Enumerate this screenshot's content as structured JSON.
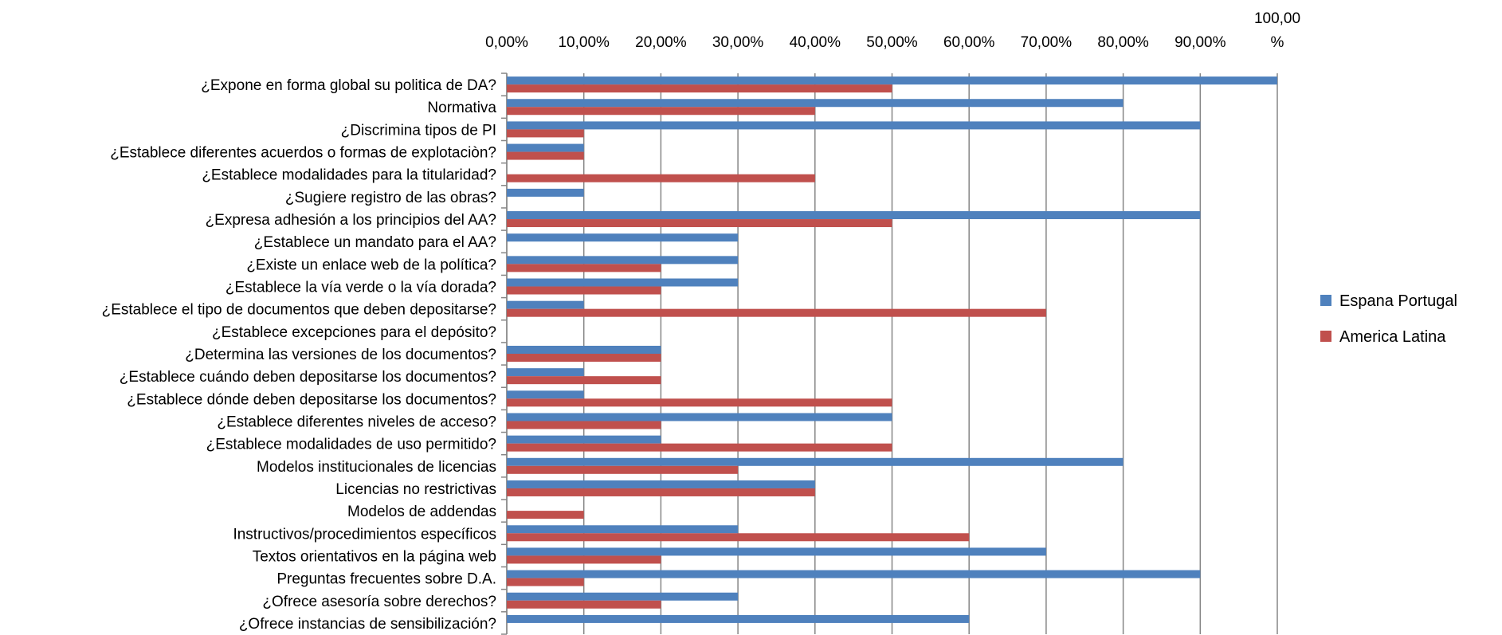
{
  "chart_data": {
    "type": "bar",
    "orientation": "horizontal",
    "title": "",
    "xlabel": "",
    "ylabel": "",
    "xlim": [
      0,
      100
    ],
    "x_ticks": [
      "0,00%",
      "10,00%",
      "20,00%",
      "30,00%",
      "40,00%",
      "50,00%",
      "60,00%",
      "70,00%",
      "80,00%",
      "90,00%",
      "100,00\n%"
    ],
    "grid": "vertical",
    "legend_position": "right",
    "categories": [
      "¿Expone en forma global su politica de DA?",
      "Normativa",
      "¿Discrimina tipos de PI",
      "¿Establece diferentes acuerdos o formas de explotaciòn?",
      "¿Establece modalidades para la titularidad?",
      "¿Sugiere registro de las obras?",
      "¿Expresa adhesión a los principios del AA?",
      "¿Establece un mandato para el AA?",
      "¿Existe un enlace web de la política?",
      "¿Establece la vía verde o la vía dorada?",
      "¿Establece el tipo de documentos que deben depositarse?",
      "¿Establece excepciones para el depósito?",
      "¿Determina las versiones de los documentos?",
      "¿Establece cuándo deben depositarse los documentos?",
      "¿Establece dónde deben depositarse los documentos?",
      "¿Establece diferentes niveles de acceso?",
      "¿Establece modalidades de uso permitido?",
      "Modelos institucionales de licencias",
      "Licencias no restrictivas",
      "Modelos de addendas",
      "Instructivos/procedimientos específicos",
      "Textos orientativos en la página web",
      "Preguntas frecuentes sobre D.A.",
      "¿Ofrece asesoría sobre derechos?",
      "¿Ofrece instancias de sensibilización?"
    ],
    "series": [
      {
        "name": "Espana Portugal",
        "color": "#4F81BD",
        "values": [
          100,
          80,
          90,
          10,
          0,
          10,
          90,
          30,
          30,
          30,
          10,
          0,
          20,
          10,
          10,
          50,
          20,
          80,
          40,
          0,
          30,
          70,
          90,
          30,
          60
        ]
      },
      {
        "name": "America Latina",
        "color": "#C0504D",
        "values": [
          50,
          40,
          10,
          10,
          40,
          0,
          50,
          0,
          20,
          20,
          70,
          0,
          20,
          20,
          50,
          20,
          50,
          30,
          40,
          10,
          60,
          20,
          10,
          20,
          0
        ]
      }
    ]
  }
}
